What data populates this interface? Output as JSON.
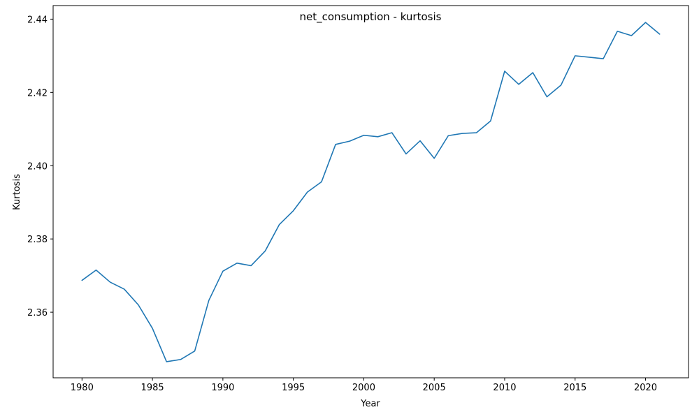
{
  "chart_data": {
    "type": "line",
    "title": "net_consumption - kurtosis",
    "xlabel": "Year",
    "ylabel": "Kurtosis",
    "xlim": [
      1977.95,
      2023.05
    ],
    "ylim": [
      2.3421,
      2.4437
    ],
    "x_ticks": [
      1980,
      1985,
      1990,
      1995,
      2000,
      2005,
      2010,
      2015,
      2020
    ],
    "y_ticks": [
      2.36,
      2.38,
      2.4,
      2.42,
      2.44
    ],
    "y_tick_labels": [
      "2.36",
      "2.38",
      "2.40",
      "2.42",
      "2.44"
    ],
    "grid": false,
    "legend": "none",
    "line_color": "#1f77b4",
    "x": [
      1980,
      1981,
      1982,
      1983,
      1984,
      1985,
      1986,
      1987,
      1988,
      1989,
      1990,
      1991,
      1992,
      1993,
      1994,
      1995,
      1996,
      1997,
      1998,
      1999,
      2000,
      2001,
      2002,
      2003,
      2004,
      2005,
      2006,
      2007,
      2008,
      2009,
      2010,
      2011,
      2012,
      2013,
      2014,
      2015,
      2016,
      2017,
      2018,
      2019,
      2020,
      2021
    ],
    "series": [
      {
        "values": [
          2.3687,
          2.3715,
          2.3682,
          2.3663,
          2.362,
          2.3556,
          2.3465,
          2.3471,
          2.3494,
          2.3632,
          2.3712,
          2.3734,
          2.3727,
          2.3767,
          2.3839,
          2.3877,
          2.3928,
          2.3956,
          2.4058,
          2.4067,
          2.4083,
          2.4079,
          2.409,
          2.4032,
          2.4068,
          2.402,
          2.4082,
          2.4088,
          2.409,
          2.4122,
          2.4258,
          2.4222,
          2.4254,
          2.4188,
          2.422,
          2.43,
          2.4296,
          2.4292,
          2.4367,
          2.4355,
          2.4391,
          2.4359
        ]
      }
    ]
  }
}
